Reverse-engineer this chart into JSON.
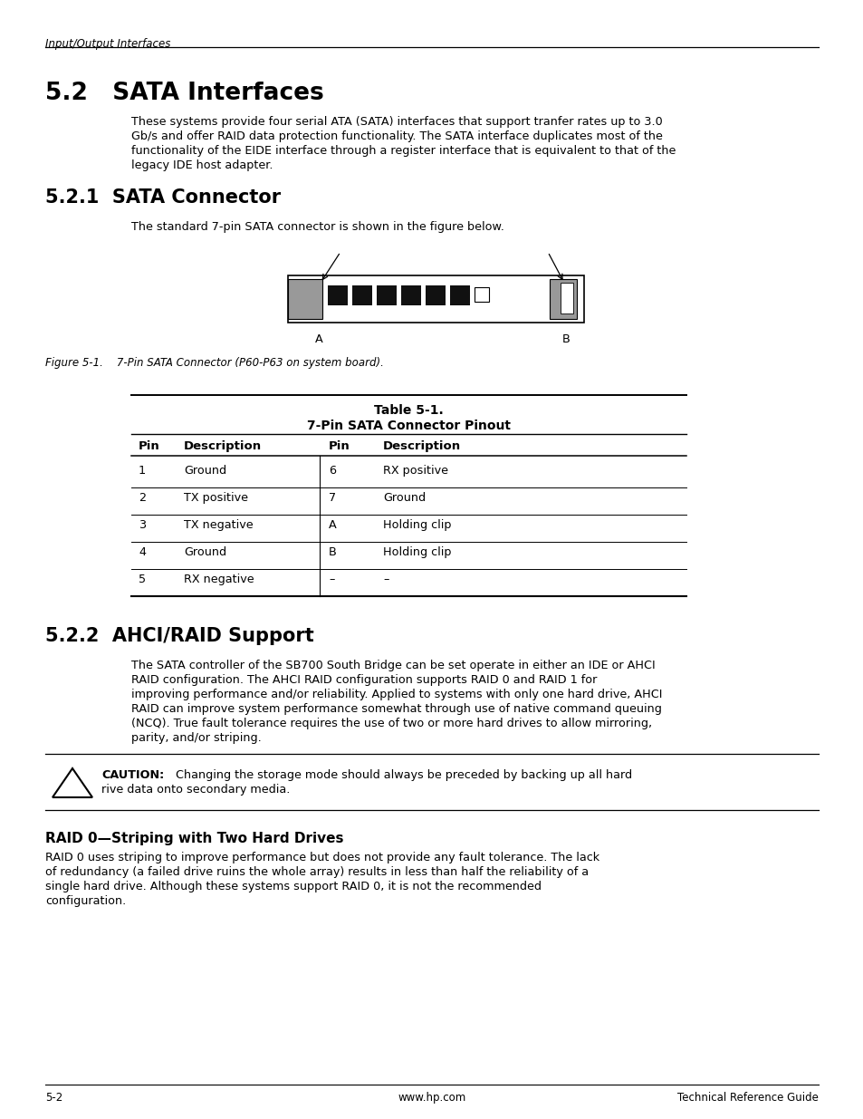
{
  "header_italic": "Input/Output Interfaces",
  "section_title": "5.2   SATA Interfaces",
  "section_body": "These systems provide four serial ATA (SATA) interfaces that support tranfer rates up to 3.0\nGb/s and offer RAID data protection functionality. The SATA interface duplicates most of the\nfunctionality of the EIDE interface through a register interface that is equivalent to that of the\nlegacy IDE host adapter.",
  "subsection1_title": "5.2.1  SATA Connector",
  "subsection1_body": "The standard 7-pin SATA connector is shown in the figure below.",
  "figure_caption": "Figure 5-1.    7-Pin SATA Connector (P60-P63 on system board).",
  "table_title1": "Table 5-1.",
  "table_title2": "7-Pin SATA Connector Pinout",
  "table_headers": [
    "Pin",
    "Description",
    "Pin",
    "Description"
  ],
  "table_rows": [
    [
      "1",
      "Ground",
      "6",
      "RX positive"
    ],
    [
      "2",
      "TX positive",
      "7",
      "Ground"
    ],
    [
      "3",
      "TX negative",
      "A",
      "Holding clip"
    ],
    [
      "4",
      "Ground",
      "B",
      "Holding clip"
    ],
    [
      "5",
      "RX negative",
      "–",
      "–"
    ]
  ],
  "subsection2_title": "5.2.2  AHCI/RAID Support",
  "subsection2_body": "The SATA controller of the SB700 South Bridge can be set operate in either an IDE or AHCI\nRAID configuration. The AHCI RAID configuration supports RAID 0 and RAID 1 for\nimproving performance and/or reliability. Applied to systems with only one hard drive, AHCI\nRAID can improve system performance somewhat through use of native command queuing\n(NCQ). True fault tolerance requires the use of two or more hard drives to allow mirroring,\nparity, and/or striping.",
  "caution_bold": "CAUTION:",
  "caution_text": " Changing the storage mode should always be preceded by backing up all hard\nrive data onto secondary media.",
  "raid_subtitle": "RAID 0—Striping with Two Hard Drives",
  "raid_body": "RAID 0 uses striping to improve performance but does not provide any fault tolerance. The lack\nof redundancy (a failed drive ruins the whole array) results in less than half the reliability of a\nsingle hard drive. Although these systems support RAID 0, it is not the recommended\nconfiguration.",
  "footer_left": "5-2",
  "footer_center": "www.hp.com",
  "footer_right": "Technical Reference Guide",
  "bg_color": "#ffffff",
  "text_color": "#000000"
}
